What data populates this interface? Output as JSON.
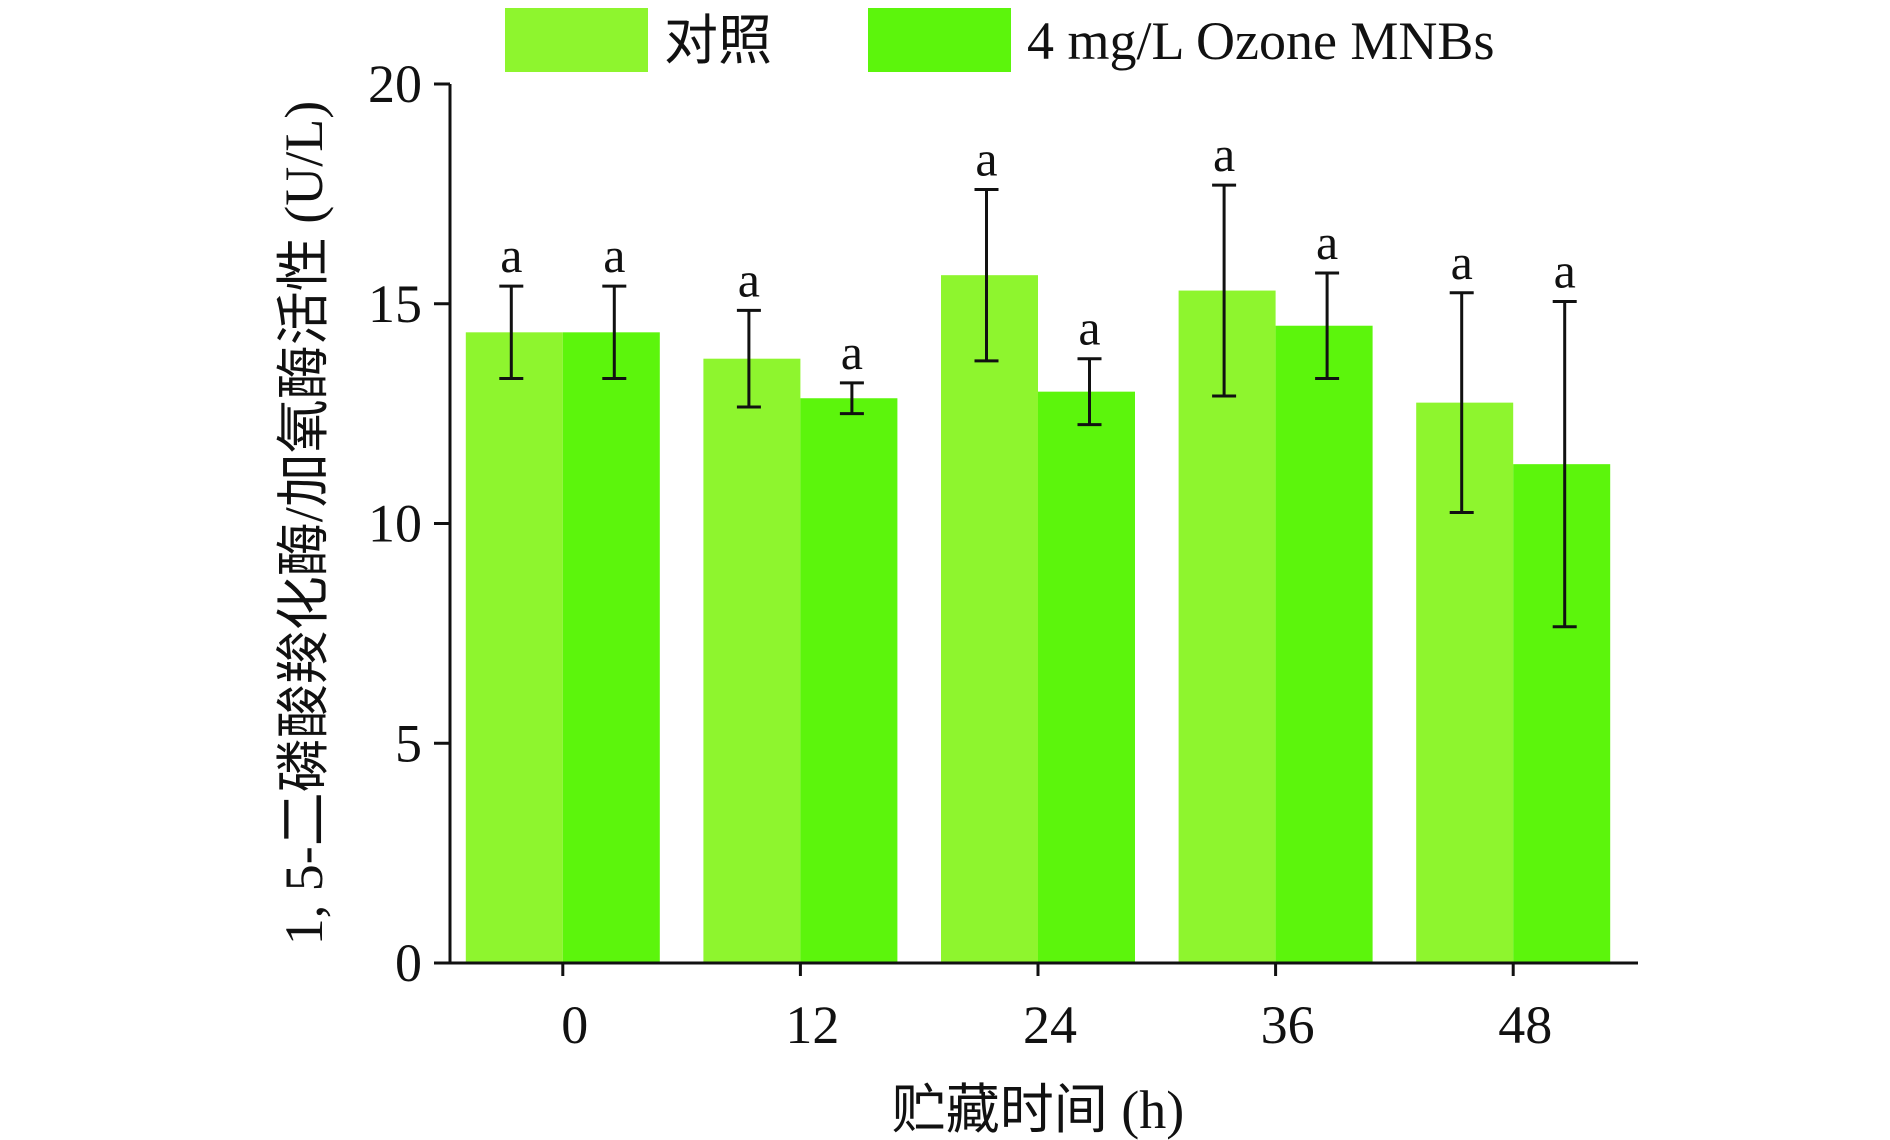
{
  "chart_data": {
    "type": "bar",
    "title": "",
    "xlabel": "贮藏时间 (h)",
    "ylabel": "1, 5-二磷酸羧化酶/加氧酶活性 (U/L)",
    "categories": [
      "0",
      "12",
      "24",
      "36",
      "48"
    ],
    "ylim": [
      0,
      20
    ],
    "yticks": [
      0,
      5,
      10,
      15,
      20
    ],
    "grid": false,
    "legend_position": "top",
    "series": [
      {
        "name": "对照",
        "color": "#8ef52e",
        "values": [
          14.35,
          13.75,
          15.65,
          15.3,
          12.75
        ],
        "errors": [
          1.05,
          1.1,
          1.95,
          2.4,
          2.5
        ],
        "significance": [
          "a",
          "a",
          "a",
          "a",
          "a"
        ]
      },
      {
        "name": "4 mg/L Ozone MNBs",
        "color": "#5cf50c",
        "values": [
          14.35,
          12.85,
          13.0,
          14.5,
          11.35
        ],
        "errors": [
          1.05,
          0.35,
          0.75,
          1.2,
          3.7
        ],
        "significance": [
          "a",
          "a",
          "a",
          "a",
          "a"
        ]
      }
    ]
  }
}
